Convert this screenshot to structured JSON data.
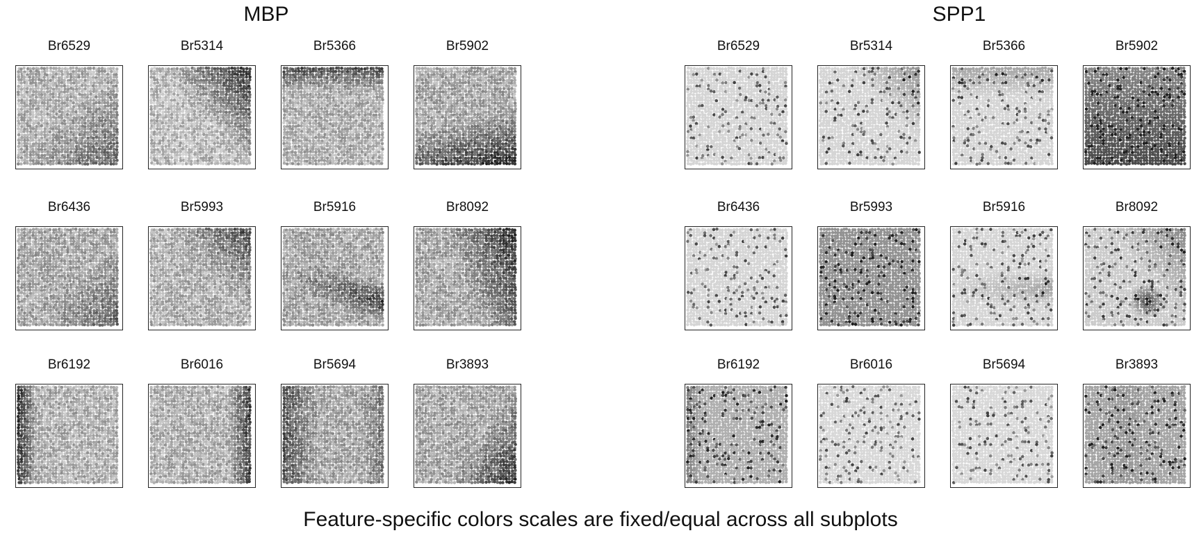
{
  "figure": {
    "caption": "Feature-specific colors scales are fixed/equal across all subplots",
    "colormap": [
      "#dcdcdc",
      "#222222"
    ]
  },
  "groups": [
    {
      "title": "MBP",
      "samples": [
        "Br6529",
        "Br5314",
        "Br5366",
        "Br5902",
        "Br6436",
        "Br5993",
        "Br5916",
        "Br8092",
        "Br6192",
        "Br6016",
        "Br5694",
        "Br3893"
      ]
    },
    {
      "title": "SPP1",
      "samples": [
        "Br6529",
        "Br5314",
        "Br5366",
        "Br5902",
        "Br6436",
        "Br5993",
        "Br5916",
        "Br8092",
        "Br6192",
        "Br6016",
        "Br5694",
        "Br3893"
      ]
    }
  ]
}
